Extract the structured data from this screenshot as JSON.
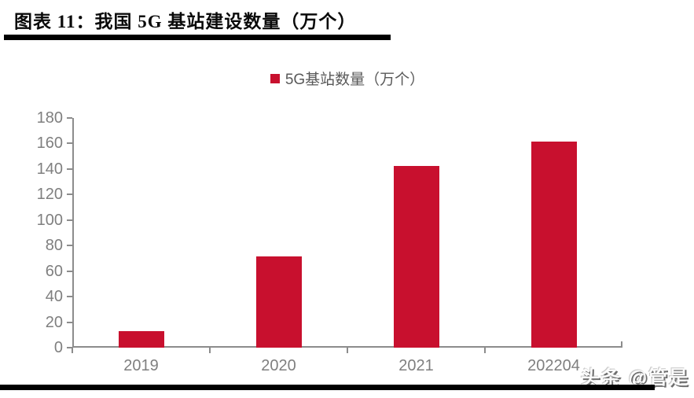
{
  "header": {
    "title": "图表 11：我国 5G 基站建设数量（万个）"
  },
  "legend": {
    "label": "5G基站数量（万个）",
    "marker_color": "#c8102e"
  },
  "chart_data": {
    "type": "bar",
    "categories": [
      "2019",
      "2020",
      "2021",
      "202204"
    ],
    "values": [
      13,
      71.8,
      142.5,
      161.5
    ],
    "series_name": "5G基站数量（万个）",
    "title": "图表 11：我国 5G 基站建设数量（万个）",
    "xlabel": "",
    "ylabel": "",
    "ylim": [
      0,
      180
    ],
    "ytick_step": 20,
    "grid": false,
    "legend_position": "top-center",
    "bar_color": "#c8102e",
    "axis_color": "#8c8c8c",
    "tick_label_color": "#7f7f7f"
  },
  "watermark": {
    "text": "头条 @管是"
  }
}
